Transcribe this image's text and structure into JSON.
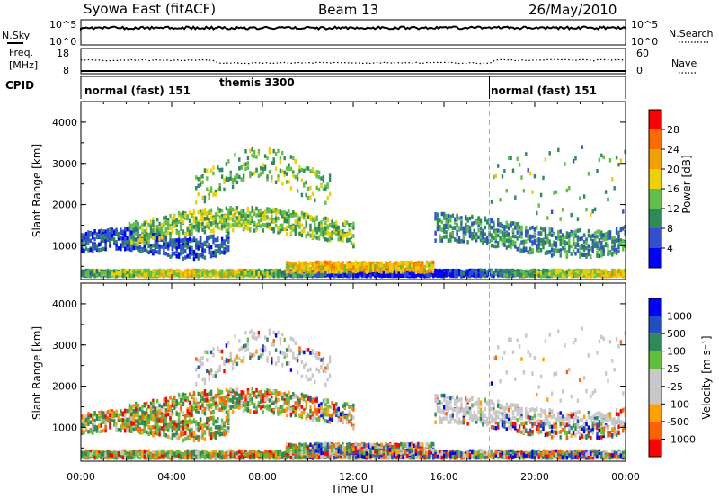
{
  "header": {
    "station": "Syowa East (fitACF)",
    "beam": "Beam 13",
    "date": "26/May/2010"
  },
  "top_panels": {
    "nsky": {
      "label": "N.Sky",
      "right_label": "N.Search",
      "left_ticks": [
        "10^5",
        "10^0"
      ],
      "right_ticks": [
        "10^5",
        "10^0"
      ]
    },
    "freq": {
      "label": "Freq.",
      "unit": "[MHz]",
      "left_ticks": [
        "18",
        "8"
      ],
      "right_label": "Nave",
      "right_ticks": [
        "60",
        "0"
      ]
    }
  },
  "cpid": {
    "label": "CPID",
    "segments": [
      {
        "name": "normal (fast) 151",
        "start_h": 0,
        "end_h": 6
      },
      {
        "name": "themis 3300",
        "start_h": 6,
        "end_h": 18
      },
      {
        "name": "normal (fast) 151",
        "start_h": 18,
        "end_h": 24
      }
    ]
  },
  "chart_data": [
    {
      "type": "heatmap",
      "name": "power",
      "ylabel": "Slant Range [km]",
      "xlim": [
        0,
        24
      ],
      "ylim": [
        180,
        4500
      ],
      "yticks": [
        1000,
        2000,
        3000,
        4000
      ],
      "colorbar": {
        "label": "Power [dB]",
        "range": [
          0,
          32
        ],
        "ticks": [
          4,
          8,
          12,
          16,
          20,
          24,
          28
        ],
        "colors": [
          "#0000ff",
          "#3050d0",
          "#2f8a5a",
          "#5fbf4a",
          "#f0d000",
          "#f0a000",
          "#ff6a00",
          "#ff0000"
        ]
      },
      "features": [
        {
          "desc": "near range band",
          "t0": 0,
          "t1": 24,
          "r0": 250,
          "r1": 450,
          "level": 18
        },
        {
          "desc": "E band",
          "t0": 0,
          "t1": 6,
          "r0": 700,
          "r1": 1500,
          "level": 6
        },
        {
          "desc": "F band rising",
          "t0": 3,
          "t1": 12,
          "r0": 1300,
          "r1": 2200,
          "level": 14
        },
        {
          "desc": "late band",
          "t0": 16,
          "t1": 24,
          "r0": 900,
          "r1": 1700,
          "level": 10
        }
      ]
    },
    {
      "type": "heatmap",
      "name": "velocity",
      "ylabel": "Slant Range [km]",
      "xlabel": "Time UT",
      "xlim": [
        0,
        24
      ],
      "ylim": [
        180,
        4500
      ],
      "yticks": [
        1000,
        2000,
        3000,
        4000
      ],
      "xticks": [
        "00:00",
        "04:00",
        "08:00",
        "12:00",
        "16:00",
        "20:00",
        "00:00"
      ],
      "colorbar": {
        "label": "Velocity [m s⁻¹]",
        "ticks": [
          "-1000",
          "-500",
          "-100",
          "-25",
          "25",
          "100",
          "500",
          "1000"
        ],
        "colors": [
          "#ff0000",
          "#ff6000",
          "#ffa000",
          "#c8c8c8",
          "#c8c8c8",
          "#5fbf3a",
          "#2f8a5a",
          "#2050c0",
          "#0000ff"
        ]
      }
    }
  ]
}
